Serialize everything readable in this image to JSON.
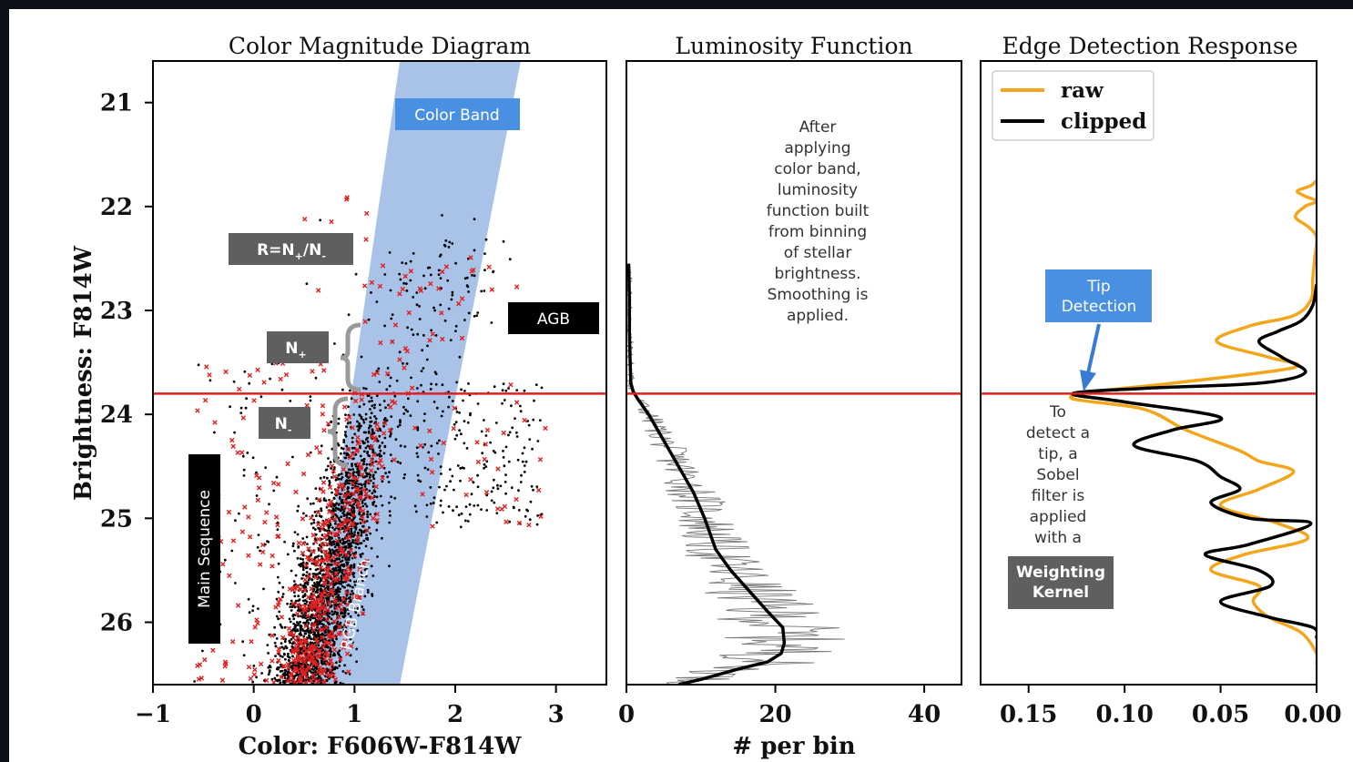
{
  "colors": {
    "page_border": "#0d1117",
    "band": "#a9c2e8",
    "tip_line": "#e02020",
    "raw": "#f2a61c",
    "clipped": "#000000",
    "label_dark": "#5f5f5f",
    "label_black": "#000000",
    "label_blue": "#4a90e2",
    "star_black": "#000000",
    "star_red": "#e02020"
  },
  "chart_data": [
    {
      "type": "scatter",
      "title": "Color Magnitude Diagram",
      "xlabel": "Color: F606W-F814W",
      "ylabel": "Brightness: F814W",
      "xlim": [
        -1,
        3.5
      ],
      "ylim": [
        26.6,
        20.6
      ],
      "y_inverted": true,
      "xticks": [
        -1,
        0,
        1,
        2,
        3
      ],
      "yticks": [
        21,
        22,
        23,
        24,
        25,
        26
      ],
      "xtick_labels": [
        "−1",
        "0",
        "1",
        "2",
        "3"
      ],
      "ytick_labels": [
        "21",
        "22",
        "23",
        "24",
        "25",
        "26"
      ],
      "tip_magnitude": 23.8,
      "color_band": {
        "bottom_x": [
          0.55,
          1.45
        ],
        "bottom_y": 26.6,
        "top_x": [
          1.45,
          2.65
        ],
        "top_y": 20.6
      },
      "series": [
        {
          "marker": "dot",
          "color": "#000000"
        },
        {
          "marker": "x",
          "color": "#e02020"
        }
      ],
      "annotations": {
        "color_band": "Color Band",
        "ratio": "R=N",
        "ratio_sub_plus": "+",
        "ratio_mid": "/N",
        "ratio_sub_minus": "-",
        "n_plus": "N",
        "n_plus_sub": "+",
        "n_minus": "N",
        "n_minus_sub": "-",
        "agb": "AGB",
        "main_sequence": "Main Sequence",
        "rgb_branch": "RGB Branch"
      }
    },
    {
      "type": "line",
      "title": "Luminosity Function",
      "xlabel": "# per bin",
      "xlim": [
        0,
        45
      ],
      "ylim": [
        26.6,
        20.6
      ],
      "xticks": [
        0,
        20,
        40
      ],
      "xtick_labels": [
        "0",
        "20",
        "40"
      ],
      "smoothed_x": [
        0.3,
        0.4,
        0.4,
        0.5,
        0.6,
        0.9,
        1.5,
        3,
        5,
        7,
        9,
        10.5,
        12,
        14,
        16.5,
        19,
        21,
        21.2,
        20.8,
        19,
        15,
        10,
        7
      ],
      "smoothed_y": [
        22.55,
        22.9,
        23.2,
        23.5,
        23.7,
        23.78,
        23.85,
        24.0,
        24.25,
        24.5,
        24.75,
        25.0,
        25.3,
        25.5,
        25.7,
        25.9,
        26.05,
        26.2,
        26.3,
        26.38,
        26.45,
        26.55,
        26.6
      ],
      "annotation": [
        "After",
        "applying",
        "color band,",
        "luminosity",
        "function built",
        "from binning",
        "of stellar",
        "brightness.",
        "Smoothing is",
        "applied."
      ]
    },
    {
      "type": "line",
      "title": "Edge Detection Response",
      "xlim": [
        0.175,
        0.0
      ],
      "ylim": [
        26.6,
        20.6
      ],
      "x_inverted": true,
      "xticks": [
        0.15,
        0.1,
        0.05,
        0.0
      ],
      "xtick_labels": [
        "0.15",
        "0.10",
        "0.05",
        "0.00"
      ],
      "legend": {
        "position": "top-left",
        "entries": [
          "raw",
          "clipped"
        ]
      },
      "series": [
        {
          "name": "raw",
          "color": "#f2a61c",
          "x": [
            0.0,
            0.003,
            0.01,
            0.006,
            0.0,
            0.006,
            0.011,
            0.004,
            0.0,
            0.001,
            0.002,
            0.003,
            0.012,
            0.035,
            0.052,
            0.025,
            0.012,
            0.075,
            0.115,
            0.127,
            0.09,
            0.068,
            0.04,
            0.03,
            0.012,
            0.03,
            0.05,
            0.02,
            0.005,
            0.038,
            0.055,
            0.03,
            0.033,
            0.025,
            0.008,
            0.0,
            0.0
          ],
          "y": [
            21.75,
            21.8,
            21.85,
            21.9,
            21.95,
            22.0,
            22.1,
            22.2,
            22.3,
            22.5,
            22.7,
            22.9,
            23.05,
            23.15,
            23.3,
            23.45,
            23.55,
            23.7,
            23.78,
            23.85,
            23.95,
            24.15,
            24.35,
            24.45,
            24.55,
            24.72,
            24.88,
            25.05,
            25.2,
            25.35,
            25.5,
            25.65,
            25.8,
            25.95,
            26.1,
            26.3,
            26.4
          ]
        },
        {
          "name": "clipped",
          "color": "#000000",
          "x": [
            0.0,
            0.002,
            0.008,
            0.02,
            0.03,
            0.018,
            0.006,
            0.03,
            0.09,
            0.127,
            0.1,
            0.05,
            0.075,
            0.095,
            0.062,
            0.05,
            0.04,
            0.055,
            0.035,
            0.003,
            0.035,
            0.058,
            0.03,
            0.024,
            0.05,
            0.025,
            0.002,
            0.0
          ],
          "y": [
            22.75,
            22.95,
            23.1,
            23.2,
            23.3,
            23.45,
            23.6,
            23.7,
            23.75,
            23.8,
            23.88,
            24.03,
            24.15,
            24.3,
            24.45,
            24.6,
            24.72,
            24.85,
            25.0,
            25.05,
            25.25,
            25.35,
            25.5,
            25.65,
            25.8,
            25.95,
            26.05,
            26.15
          ]
        }
      ],
      "annotations": {
        "tip_detection_line1": "Tip",
        "tip_detection_line2": "Detection",
        "sobel": [
          "To",
          "detect a",
          "tip, a",
          "Sobel",
          "filter is",
          "applied",
          "with a"
        ],
        "kernel_line1": "Weighting",
        "kernel_line2": "Kernel"
      }
    }
  ]
}
